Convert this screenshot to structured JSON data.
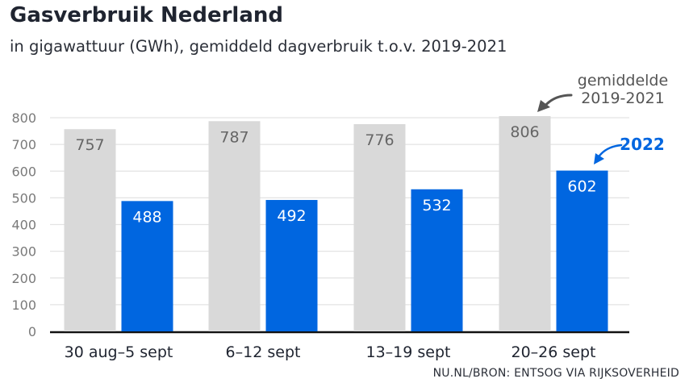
{
  "header": {
    "title": "Gasverbruik Nederland",
    "subtitle": "in gigawattuur (GWh), gemiddeld dagverbruik t.o.v. 2019-2021"
  },
  "footer": {
    "source": "NU.NL/BRON: ENTSOG VIA RIJKSOVERHEID"
  },
  "colors": {
    "baseline_bar": "#d9d9d9",
    "current_bar": "#0066e0",
    "grid": "#e3e3e3",
    "axis": "#111111"
  },
  "chart_data": {
    "type": "bar",
    "categories": [
      "30 aug–5 sept",
      "6–12 sept",
      "13–19 sept",
      "20–26 sept"
    ],
    "series": [
      {
        "name": "gemiddelde 2019-2021",
        "values": [
          757,
          787,
          776,
          806
        ]
      },
      {
        "name": "2022",
        "values": [
          488,
          492,
          532,
          602
        ]
      }
    ],
    "yticks": [
      "0",
      "100",
      "200",
      "300",
      "400",
      "500",
      "600",
      "700",
      "800"
    ],
    "ylim": [
      0,
      800
    ],
    "grid": true,
    "annotations": {
      "baseline_label_line1": "gemiddelde",
      "baseline_label_line2": "2019-2021",
      "current_label": "2022"
    }
  }
}
